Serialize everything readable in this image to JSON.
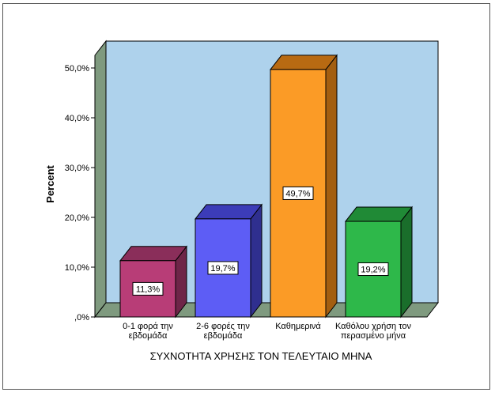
{
  "chart_data": {
    "type": "bar",
    "categories": [
      [
        "0-1 φορά την",
        "εβδομάδα"
      ],
      [
        "2-6 φορές την",
        "εβδομάδα"
      ],
      [
        "Καθημερινά"
      ],
      [
        "Καθόλου χρήση τον",
        "περασμένο μήνα"
      ]
    ],
    "values": [
      11.3,
      19.7,
      49.7,
      19.2
    ],
    "value_labels": [
      "11,3%",
      "19,7%",
      "49,7%",
      "19,2%"
    ],
    "xlabel": "ΣΥΧΝΟΤΗΤΑ ΧΡΗΣΗΣ ΤΟΝ ΤΕΛΕΥΤΑΙΟ ΜΗΝΑ",
    "ylabel": "Percent",
    "ylim": [
      0,
      50
    ],
    "yticks": [
      0,
      10,
      20,
      30,
      40,
      50
    ],
    "ytick_labels": [
      ",0%",
      "10,0%",
      "20,0%",
      "30,0%",
      "40,0%",
      "50,0%"
    ],
    "bar_colors": [
      {
        "front": "#b83d77",
        "side": "#6e2548",
        "top": "#8a2e5a"
      },
      {
        "front": "#5d5df5",
        "side": "#2f2f8f",
        "top": "#3c3cb8"
      },
      {
        "front": "#fb9b26",
        "side": "#a35e10",
        "top": "#b86a12"
      },
      {
        "front": "#2eb84a",
        "side": "#1a6e2b",
        "top": "#208a36"
      }
    ],
    "plot_background": "#aed2ec",
    "floor_color": "#7f9a7f",
    "grid": false,
    "style": "3d"
  }
}
